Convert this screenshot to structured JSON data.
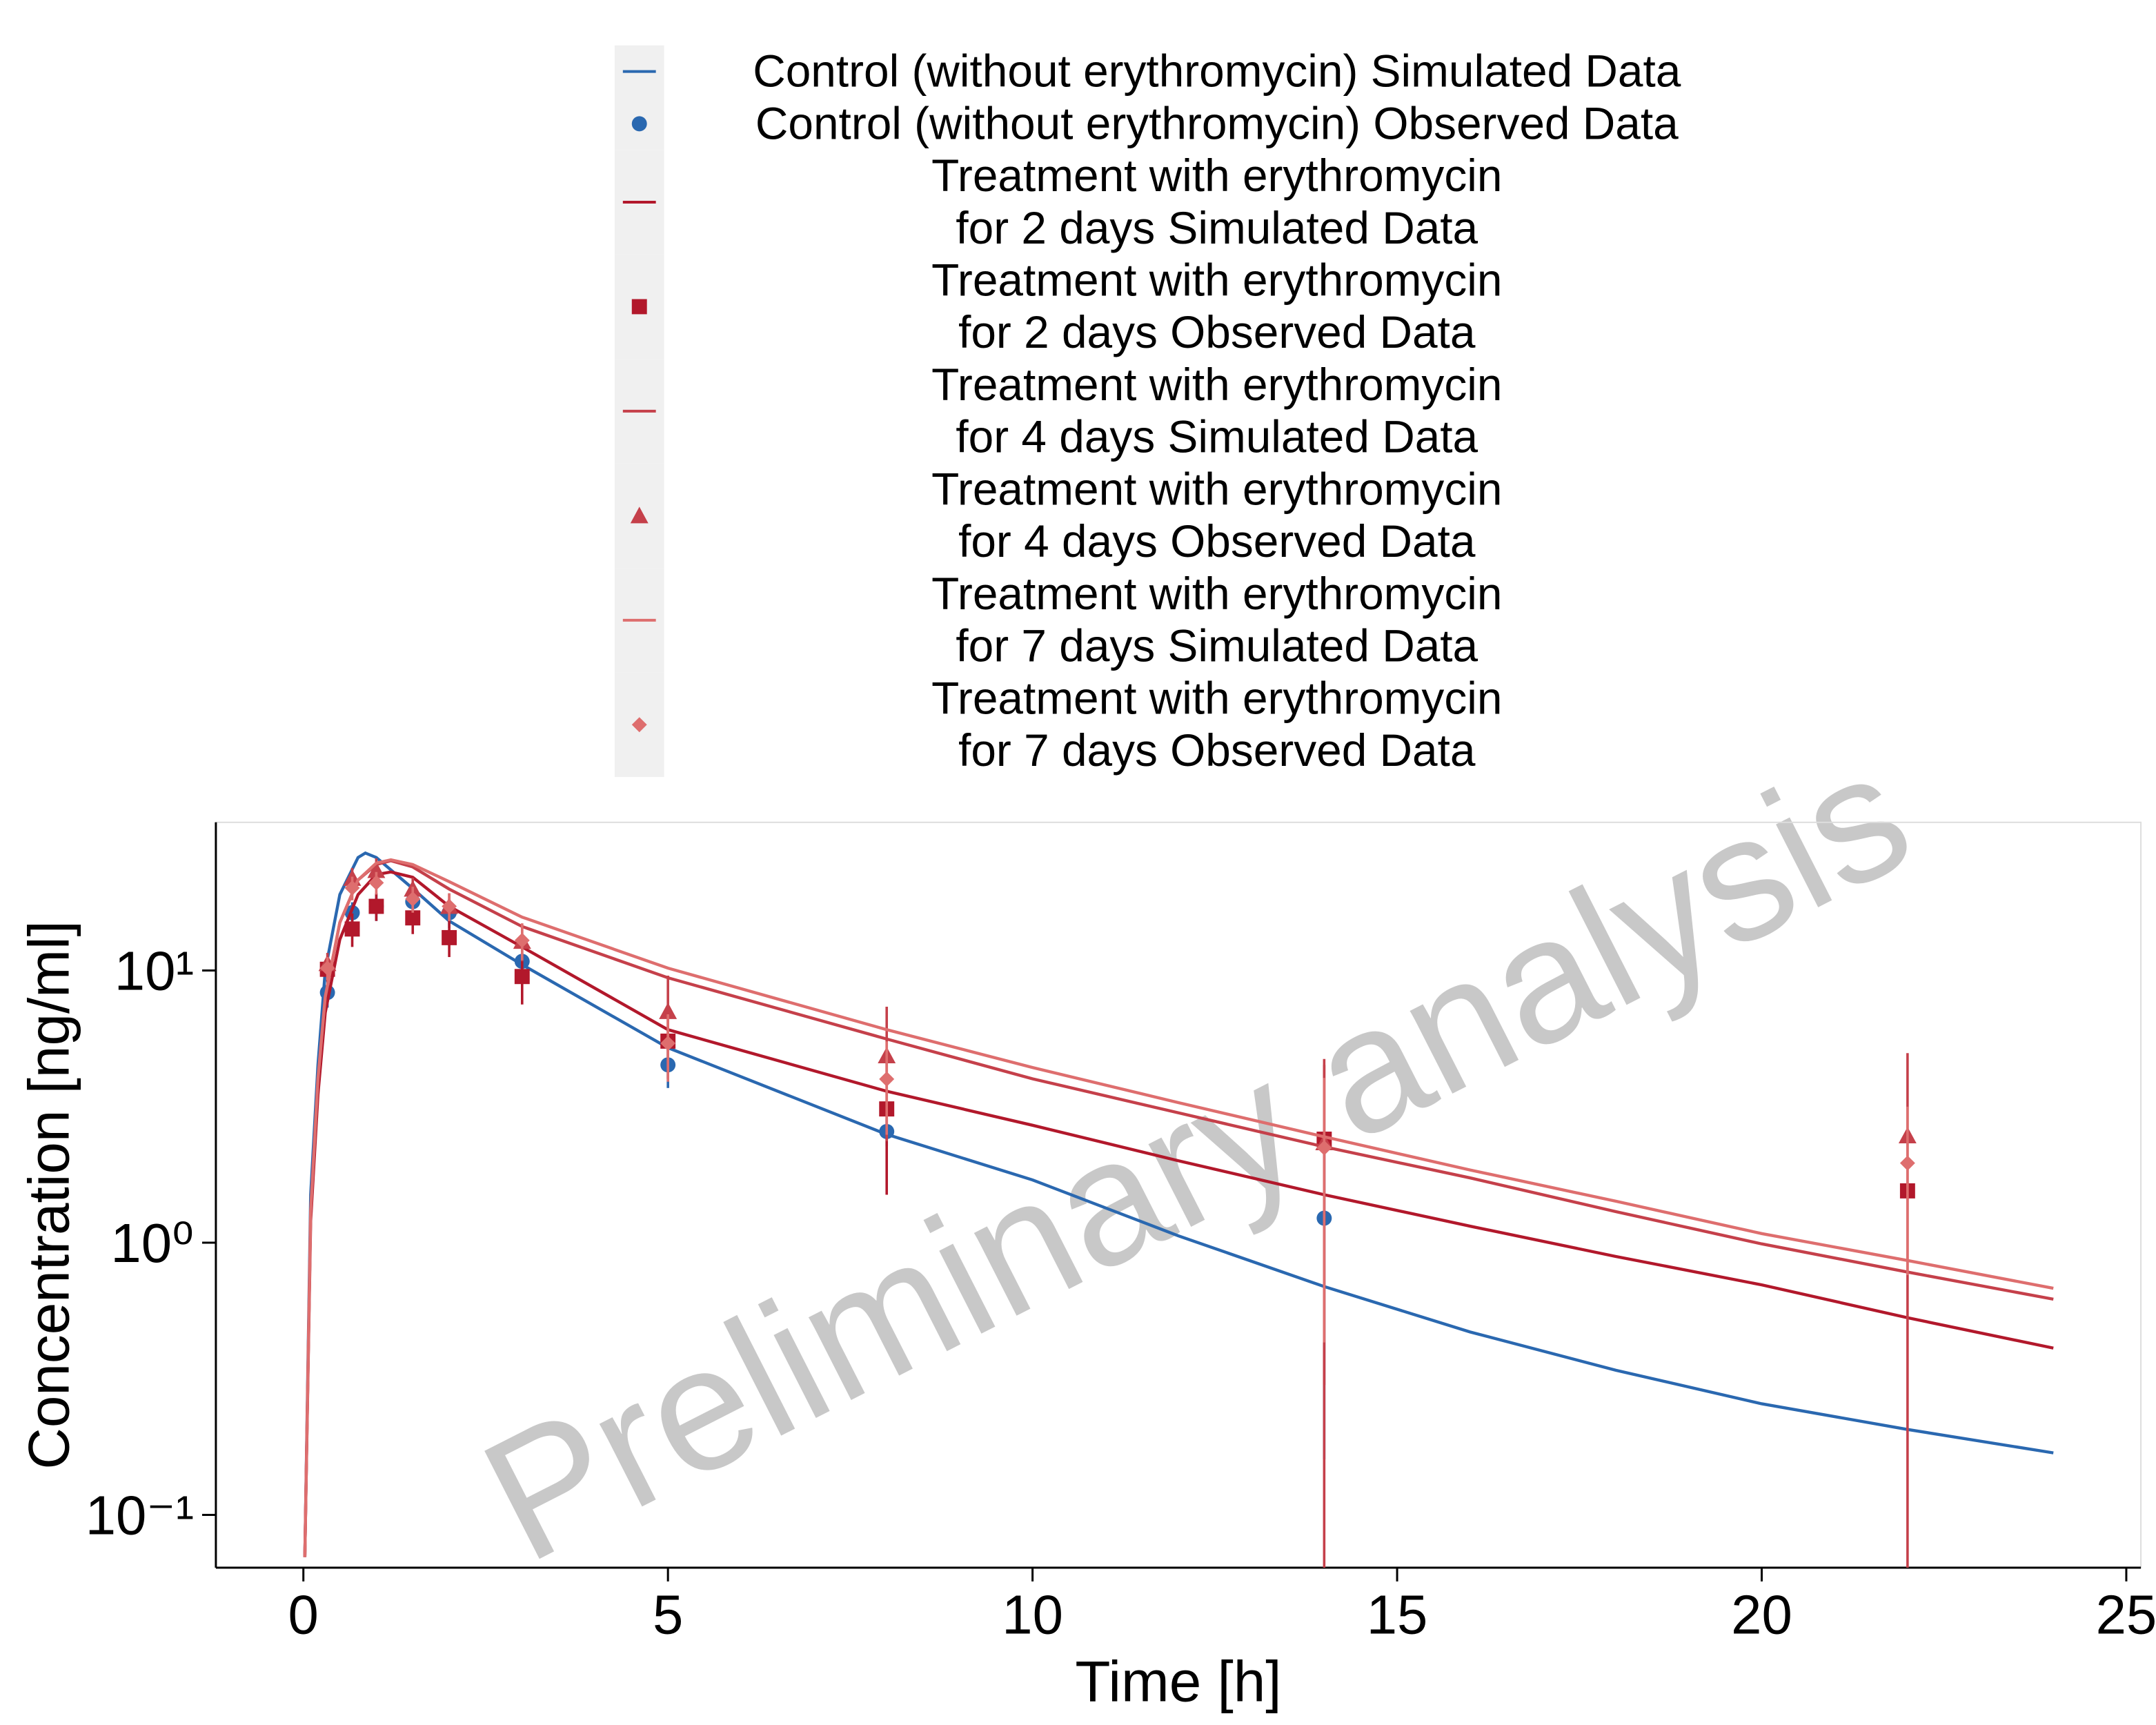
{
  "chart_data": {
    "type": "line",
    "xlabel": "Time [h]",
    "ylabel": "Concentration [ng/ml]",
    "watermark": "Preliminary analysis",
    "xlim": [
      -1.2,
      25.2
    ],
    "xticks": [
      0,
      5,
      10,
      15,
      20,
      25
    ],
    "ylim": [
      0.064,
      35
    ],
    "log_y": true,
    "yticks": [
      {
        "value": 0.1,
        "label": "10⁻¹"
      },
      {
        "value": 1,
        "label": "10⁰"
      },
      {
        "value": 10,
        "label": "10¹"
      }
    ],
    "legend": "top",
    "series": [
      {
        "name": "Control (without erythromycin) Simulated Data",
        "type": "line",
        "color": "#2a68b0",
        "x": [
          0.02,
          0.1,
          0.2,
          0.3,
          0.5,
          0.75,
          0.85,
          1,
          1.5,
          2,
          3,
          5,
          8,
          10,
          12,
          14,
          16,
          18,
          20,
          22,
          24
        ],
        "values": [
          0.07,
          1.5,
          4.5,
          10,
          19,
          26,
          27,
          26,
          20,
          15.2,
          10.5,
          5.2,
          2.5,
          1.7,
          1.06,
          0.69,
          0.47,
          0.34,
          0.256,
          0.206,
          0.169
        ]
      },
      {
        "name": "Control (without erythromycin) Observed Data",
        "type": "scatter",
        "marker": "circle",
        "color": "#2a68b0",
        "x": [
          0.33,
          0.67,
          1,
          1.5,
          2,
          3,
          5,
          8,
          14
        ],
        "values": [
          8.3,
          16.3,
          17.2,
          17.9,
          16.3,
          10.8,
          4.5,
          2.56,
          1.23
        ],
        "errors": [
          1,
          1.5,
          2,
          2,
          2,
          1.5,
          0.8,
          0.3,
          1.07
        ]
      },
      {
        "name": "Treatment with erythromycin\nfor 2 days Simulated Data",
        "type": "line",
        "color": "#b2182b",
        "x": [
          0.02,
          0.1,
          0.2,
          0.3,
          0.5,
          0.75,
          1,
          1.2,
          1.5,
          2,
          3,
          5,
          8,
          10,
          12,
          14,
          16,
          18,
          20,
          22,
          24
        ],
        "values": [
          0.07,
          1.2,
          3.5,
          7,
          13,
          19,
          22.5,
          23,
          22,
          17.2,
          12.2,
          6.06,
          3.6,
          2.7,
          2.0,
          1.5,
          1.15,
          0.89,
          0.7,
          0.53,
          0.41
        ]
      },
      {
        "name": "Treatment with erythromycin\nfor 2 days Observed Data",
        "type": "scatter",
        "marker": "square",
        "color": "#b2182b",
        "x": [
          0.33,
          0.67,
          1,
          1.5,
          2,
          3,
          5,
          8,
          14,
          22
        ],
        "values": [
          10.1,
          14.2,
          17.2,
          15.6,
          13.2,
          9.5,
          5.5,
          3.1,
          2.4,
          1.55
        ],
        "errors": [
          1,
          2,
          2,
          2,
          2,
          2,
          1.5,
          1.6,
          2.1,
          0.1
        ]
      },
      {
        "name": "Treatment with erythromycin\nfor 4 days Simulated Data",
        "type": "line",
        "color": "#c5404a",
        "x": [
          0.02,
          0.1,
          0.2,
          0.3,
          0.5,
          0.75,
          1,
          1.2,
          1.5,
          2,
          3,
          5,
          8,
          10,
          12,
          14,
          16,
          18,
          20,
          22,
          24
        ],
        "values": [
          0.07,
          1.3,
          4,
          8,
          15,
          21.5,
          24.5,
          25.3,
          24,
          19.9,
          14.5,
          9.4,
          5.6,
          4.0,
          3.0,
          2.25,
          1.73,
          1.3,
          0.99,
          0.78,
          0.62
        ]
      },
      {
        "name": "Treatment with erythromycin\nfor 4 days Observed Data",
        "type": "scatter",
        "marker": "triangle",
        "color": "#c5404a",
        "x": [
          0.33,
          0.67,
          1,
          1.5,
          2,
          3,
          5,
          8,
          14,
          22
        ],
        "values": [
          10.6,
          21.8,
          23.3,
          19.9,
          17.2,
          12.8,
          7.07,
          4.86,
          2.33,
          2.47
        ],
        "errors": [
          1,
          2,
          2.5,
          2,
          2,
          2,
          2.5,
          2.5,
          2.4,
          2.5
        ]
      },
      {
        "name": "Treatment with erythromycin\nfor 7 days Simulated Data",
        "type": "line",
        "color": "#de6e6e",
        "x": [
          0.02,
          0.1,
          0.2,
          0.3,
          0.5,
          0.75,
          1,
          1.2,
          1.5,
          2,
          3,
          5,
          8,
          10,
          12,
          14,
          16,
          18,
          20,
          22,
          24
        ],
        "values": [
          0.07,
          1.3,
          4,
          8,
          15,
          21.5,
          24.8,
          25.5,
          24.5,
          21.2,
          15.7,
          10.2,
          6.06,
          4.4,
          3.27,
          2.45,
          1.85,
          1.42,
          1.08,
          0.86,
          0.68
        ]
      },
      {
        "name": "Treatment with erythromycin\nfor 7 days Observed Data",
        "type": "scatter",
        "marker": "diamond",
        "color": "#de6e6e",
        "x": [
          0.33,
          0.67,
          1,
          1.5,
          2,
          3,
          5,
          8,
          14,
          22
        ],
        "values": [
          10.2,
          20.1,
          21,
          18.3,
          17.2,
          12.9,
          5.4,
          3.99,
          2.23,
          1.96
        ],
        "errors": [
          1,
          2,
          2,
          2,
          2,
          2,
          1.5,
          1.5,
          1.8,
          1.2
        ]
      }
    ]
  }
}
